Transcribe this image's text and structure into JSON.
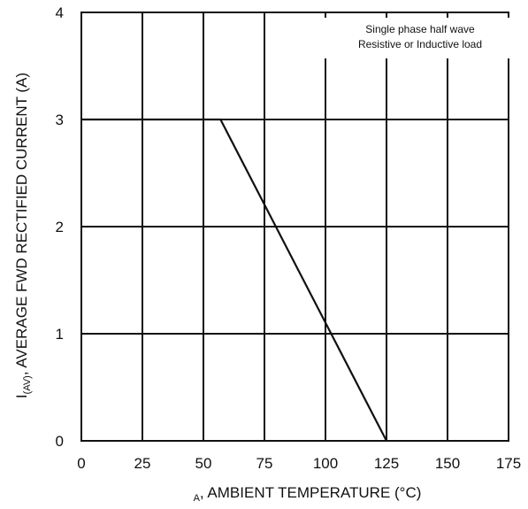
{
  "chart_data": {
    "type": "line",
    "xlabel": {
      "sub": "A",
      "text": ", AMBIENT TEMPERATURE (°C)"
    },
    "ylabel": {
      "main": "I",
      "sub": "(AV)",
      "text": ", AVERAGE FWD RECTIFIED CURRENT (A)"
    },
    "xlim": [
      0,
      175
    ],
    "ylim": [
      0,
      4
    ],
    "x_ticks": [
      0,
      25,
      50,
      75,
      100,
      125,
      150,
      175
    ],
    "y_ticks": [
      0,
      1,
      2,
      3,
      4
    ],
    "x_tick_labels": [
      "0",
      "25",
      "50",
      "75",
      "100",
      "125",
      "150",
      "175"
    ],
    "y_tick_labels": [
      "0",
      "1",
      "2",
      "3",
      "4"
    ],
    "grid": true,
    "annotation": {
      "line1": "Single phase half wave",
      "line2": "Resistive or Inductive load",
      "placement": "top-right"
    },
    "series": [
      {
        "x": [
          0,
          57,
          125
        ],
        "y": [
          3,
          3,
          0
        ]
      }
    ]
  }
}
